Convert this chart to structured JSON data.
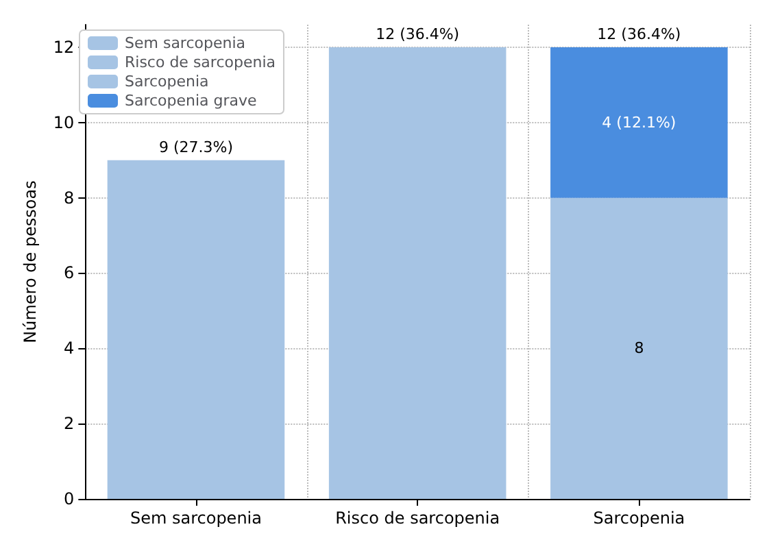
{
  "chart_data": {
    "type": "bar",
    "stacked": true,
    "ylabel": "Número de pessoas",
    "categories": [
      "Sem sarcopenia",
      "Risco de sarcopenia",
      "Sarcopenia"
    ],
    "series": [
      {
        "name": "Sem sarcopenia",
        "color": "#a6c4e4",
        "values": [
          9,
          null,
          null
        ]
      },
      {
        "name": "Risco de sarcopenia",
        "color": "#a6c4e4",
        "values": [
          null,
          12,
          null
        ]
      },
      {
        "name": "Sarcopenia",
        "color": "#a6c4e4",
        "values": [
          null,
          null,
          8
        ],
        "value_labels": [
          null,
          null,
          "8"
        ]
      },
      {
        "name": "Sarcopenia grave",
        "color": "#4a8ddf",
        "values": [
          null,
          null,
          4
        ],
        "value_labels": [
          null,
          null,
          "4 (12.1%)"
        ]
      }
    ],
    "totals": [
      "9 (27.3%)",
      "12 (36.4%)",
      "12 (36.4%)"
    ],
    "ylim": [
      0,
      12.6
    ],
    "yticks": [
      0,
      2,
      4,
      6,
      8,
      10,
      12
    ],
    "grid": true,
    "legend": "top left"
  }
}
